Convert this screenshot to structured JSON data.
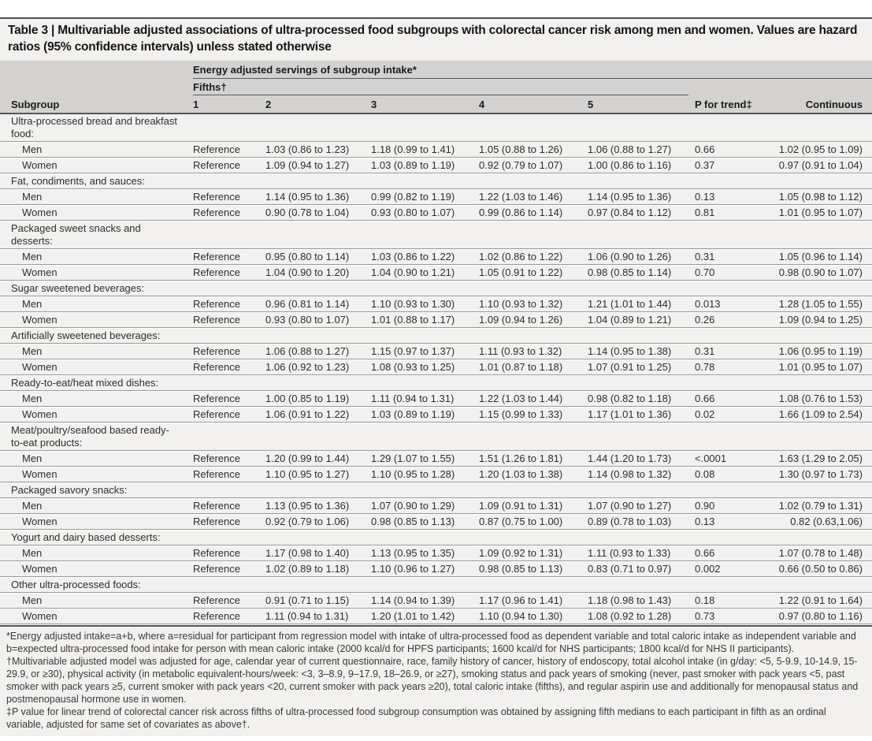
{
  "table": {
    "title": "Table 3 | Multivariable adjusted associations of ultra-processed food subgroups with colorectal cancer risk among men and women. Values are hazard\nratios (95% confidence intervals) unless stated otherwise",
    "header": {
      "span_label": "Energy adjusted servings of subgroup intake*",
      "fifths_label": "Fifths†",
      "subgroup_label": "Subgroup",
      "columns": [
        "1",
        "2",
        "3",
        "4",
        "5",
        "P for trend‡",
        "Continuous"
      ]
    },
    "sections": [
      {
        "name": "Ultra-processed bread and breakfast\nfood:",
        "rows": [
          {
            "label": "Men",
            "values": [
              "Reference",
              "1.03 (0.86 to 1.23)",
              "1.18 (0.99 to 1.41)",
              "1.05 (0.88 to 1.26)",
              "1.06 (0.88 to 1.27)",
              "0.66",
              "1.02 (0.95 to 1.09)"
            ]
          },
          {
            "label": "Women",
            "values": [
              "Reference",
              "1.09 (0.94 to 1.27)",
              "1.03 (0.89 to 1.19)",
              "0.92 (0.79 to 1.07)",
              "1.00 (0.86 to 1.16)",
              "0.37",
              "0.97 (0.91 to 1.04)"
            ]
          }
        ]
      },
      {
        "name": "Fat, condiments, and sauces:",
        "rows": [
          {
            "label": "Men",
            "values": [
              "Reference",
              "1.14 (0.95 to 1.36)",
              "0.99 (0.82 to 1.19)",
              "1.22 (1.03 to 1.46)",
              "1.14 (0.95 to 1.36)",
              "0.13",
              "1.05 (0.98 to 1.12)"
            ]
          },
          {
            "label": "Women",
            "values": [
              "Reference",
              "0.90 (0.78 to 1.04)",
              "0.93 (0.80 to 1.07)",
              "0.99 (0.86 to 1.14)",
              "0.97 (0.84 to 1.12)",
              "0.81",
              "1.01 (0.95 to 1.07)"
            ]
          }
        ]
      },
      {
        "name": "Packaged sweet snacks and\ndesserts:",
        "rows": [
          {
            "label": "Men",
            "values": [
              "Reference",
              "0.95 (0.80 to 1.14)",
              "1.03 (0.86 to 1.22)",
              "1.02 (0.86 to 1.22)",
              "1.06 (0.90 to 1.26)",
              "0.31",
              "1.05 (0.96 to 1.14)"
            ]
          },
          {
            "label": "Women",
            "values": [
              "Reference",
              "1.04 (0.90 to 1.20)",
              "1.04 (0.90 to 1.21)",
              "1.05 (0.91 to 1.22)",
              "0.98 (0.85 to 1.14)",
              "0.70",
              "0.98 (0.90 to 1.07)"
            ]
          }
        ]
      },
      {
        "name": "Sugar sweetened beverages:",
        "rows": [
          {
            "label": "Men",
            "values": [
              "Reference",
              "0.96 (0.81 to 1.14)",
              "1.10 (0.93 to 1.30)",
              "1.10 (0.93 to 1.32)",
              "1.21 (1.01 to 1.44)",
              "0.013",
              "1.28 (1.05 to 1.55)"
            ]
          },
          {
            "label": "Women",
            "values": [
              "Reference",
              "0.93 (0.80 to 1.07)",
              "1.01 (0.88 to 1.17)",
              "1.09 (0.94 to 1.26)",
              "1.04 (0.89 to 1.21)",
              "0.26",
              "1.09 (0.94 to 1.25)"
            ]
          }
        ]
      },
      {
        "name": "Artificially sweetened beverages:",
        "rows": [
          {
            "label": "Men",
            "values": [
              "Reference",
              "1.06 (0.88 to 1.27)",
              "1.15 (0.97 to 1.37)",
              "1.11 (0.93 to 1.32)",
              "1.14 (0.95 to 1.38)",
              "0.31",
              "1.06 (0.95 to 1.19)"
            ]
          },
          {
            "label": "Women",
            "values": [
              "Reference",
              "1.06 (0.92 to 1.23)",
              "1.08 (0.93 to 1.25)",
              "1.01 (0.87 to 1.18)",
              "1.07 (0.91 to 1.25)",
              "0.78",
              "1.01 (0.95 to 1.07)"
            ]
          }
        ]
      },
      {
        "name": "Ready-to-eat/heat mixed dishes:",
        "rows": [
          {
            "label": "Men",
            "values": [
              "Reference",
              "1.00 (0.85 to 1.19)",
              "1.11 (0.94 to 1.31)",
              "1.22 (1.03 to 1.44)",
              "0.98 (0.82 to 1.18)",
              "0.66",
              "1.08 (0.76 to 1.53)"
            ]
          },
          {
            "label": "Women",
            "values": [
              "Reference",
              "1.06 (0.91 to 1.22)",
              "1.03 (0.89 to 1.19)",
              "1.15 (0.99 to 1.33)",
              "1.17 (1.01 to 1.36)",
              "0.02",
              "1.66 (1.09 to 2.54)"
            ]
          }
        ]
      },
      {
        "name": "Meat/poultry/seafood based ready-\nto-eat products:",
        "rows": [
          {
            "label": "Men",
            "values": [
              "Reference",
              "1.20 (0.99 to 1.44)",
              "1.29 (1.07 to 1.55)",
              "1.51 (1.26 to 1.81)",
              "1.44 (1.20 to 1.73)",
              "<.0001",
              "1.63 (1.29 to 2.05)"
            ]
          },
          {
            "label": "Women",
            "values": [
              "Reference",
              "1.10 (0.95 to 1.27)",
              "1.10 (0.95 to 1.28)",
              "1.20 (1.03 to 1.38)",
              "1.14 (0.98 to 1.32)",
              "0.08",
              "1.30 (0.97 to 1.73)"
            ]
          }
        ]
      },
      {
        "name": "Packaged savory snacks:",
        "rows": [
          {
            "label": "Men",
            "values": [
              "Reference",
              "1.13 (0.95 to 1.36)",
              "1.07 (0.90 to 1.29)",
              "1.09 (0.91 to 1.31)",
              "1.07 (0.90 to 1.27)",
              "0.90",
              "1.02 (0.79 to 1.31)"
            ]
          },
          {
            "label": "Women",
            "values": [
              "Reference",
              "0.92 (0.79 to 1.06)",
              "0.98 (0.85 to 1.13)",
              "0.87 (0.75 to 1.00)",
              "0.89 (0.78 to 1.03)",
              "0.13",
              "0.82 (0.63,1.06)"
            ]
          }
        ]
      },
      {
        "name": "Yogurt and dairy based desserts:",
        "rows": [
          {
            "label": "Men",
            "values": [
              "Reference",
              "1.17 (0.98 to 1.40)",
              "1.13 (0.95 to 1.35)",
              "1.09 (0.92 to 1.31)",
              "1.11 (0.93 to 1.33)",
              "0.66",
              "1.07 (0.78 to 1.48)"
            ]
          },
          {
            "label": "Women",
            "values": [
              "Reference",
              "1.02 (0.89 to 1.18)",
              "1.10 (0.96 to 1.27)",
              "0.98 (0.85 to 1.13)",
              "0.83 (0.71 to 0.97)",
              "0.002",
              "0.66 (0.50 to 0.86)"
            ]
          }
        ]
      },
      {
        "name": "Other ultra-processed foods:",
        "rows": [
          {
            "label": "Men",
            "values": [
              "Reference",
              "0.91 (0.71 to 1.15)",
              "1.14 (0.94 to 1.39)",
              "1.17 (0.96 to 1.41)",
              "1.18 (0.98 to 1.43)",
              "0.18",
              "1.22 (0.91 to 1.64)"
            ]
          },
          {
            "label": "Women",
            "values": [
              "Reference",
              "1.11 (0.94 to 1.31)",
              "1.20 (1.01 to 1.42)",
              "1.10 (0.94 to 1.30)",
              "1.08 (0.92 to 1.28)",
              "0.73",
              "0.97 (0.80 to 1.16)"
            ]
          }
        ]
      }
    ],
    "footnotes": [
      "*Energy adjusted intake=a+b, where a=residual for participant from regression model with intake of ultra-processed food as dependent variable and total caloric intake as independent variable and b=expected ultra-processed food intake for person with mean caloric intake (2000 kcal/d for HPFS participants; 1600 kcal/d for NHS participants; 1800 kcal/d for NHS II participants).",
      "†Multivariable adjusted model was adjusted for age, calendar year of current questionnaire, race, family history of cancer, history of endoscopy, total alcohol intake (in g/day: <5, 5-9.9, 10-14.9, 15-29.9, or ≥30), physical activity (in metabolic equivalent-hours/week: <3, 3–8.9, 9–17.9, 18–26.9, or ≥27), smoking status and pack years of smoking (never, past smoker with pack years <5, past smoker with pack years ≥5, current smoker with pack years <20, current smoker with pack years ≥20), total caloric intake (fifths), and regular aspirin use and additionally for menopausal status and postmenopausal hormone use in women.",
      "‡P value for linear trend of colorectal cancer risk across fifths of ultra-processed food subgroup consumption was obtained by assigning fifth medians to each participant in fifth as an ordinal variable, adjusted for same set of covariates as above†."
    ]
  }
}
